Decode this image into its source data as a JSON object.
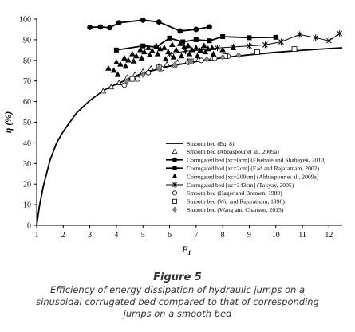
{
  "chart_data": {
    "type": "scatter",
    "xlabel": "F",
    "xlabel_subscript": "1",
    "ylabel": "η (%)",
    "xlim": [
      1,
      12.5
    ],
    "ylim": [
      0,
      100
    ],
    "xticks": [
      1,
      2,
      3,
      4,
      5,
      6,
      7,
      8,
      9,
      10,
      11,
      12
    ],
    "yticks": [
      0,
      10,
      20,
      30,
      40,
      50,
      60,
      70,
      80,
      90,
      100
    ],
    "grid": false,
    "legend_position": "bottom-right",
    "series": [
      {
        "name": "Smooth bed (Eq. 8)",
        "style": "line",
        "x": [
          1,
          1.1,
          1.25,
          1.5,
          1.75,
          2,
          2.5,
          3,
          3.5,
          4,
          5,
          6,
          7,
          8,
          9,
          10,
          11,
          12,
          12.5
        ],
        "y": [
          0,
          9,
          19,
          31.5,
          40,
          45.5,
          54.5,
          60.5,
          65.3,
          68.5,
          73.8,
          77.2,
          79.4,
          81.3,
          82.7,
          83.9,
          84.9,
          85.7,
          86.1
        ]
      },
      {
        "name": "Smooth bed (Abbaspour et al., 2009a)",
        "style": "open-triangle",
        "x": [
          3.5,
          3.8,
          4.1,
          4.4,
          4.7,
          5.0,
          5.3,
          5.6,
          5.9,
          6.3,
          6.7,
          7.1,
          7.6,
          8.1
        ],
        "y": [
          65,
          67,
          69,
          71.5,
          73,
          74.5,
          76,
          77,
          78,
          79,
          79.5,
          80.5,
          81,
          82
        ]
      },
      {
        "name": "Corrugated bed [xc=0cm] (Elsebaie and Shabayek, 2010)",
        "style": "line-filled-circle",
        "x": [
          3,
          3.4,
          3.75,
          4.1,
          5,
          5.6,
          6.4,
          7,
          7.5
        ],
        "y": [
          96,
          96.2,
          95.8,
          98.2,
          99.5,
          98.6,
          94.2,
          95,
          96.2
        ]
      },
      {
        "name": "Corrugated bed [xc=2cm] (Ead and Rajaratnam, 2002)",
        "style": "line-filled-square",
        "x": [
          4,
          5,
          5.5,
          6,
          6.5,
          7,
          7.5,
          8,
          9,
          10
        ],
        "y": [
          85,
          87,
          86.5,
          90.8,
          89,
          90,
          89.5,
          91.5,
          91,
          91.2
        ]
      },
      {
        "name": "Corrugated bed [xc=200cm] (Abbaspour et al., 2009a)",
        "style": "filled-triangle",
        "x": [
          3.7,
          3.9,
          4.0,
          4.15,
          4.3,
          4.45,
          4.6,
          4.75,
          4.9,
          5.05,
          5.2,
          5.35,
          5.5,
          5.65,
          5.8,
          5.95,
          6.1,
          6.25,
          6.4,
          6.55,
          6.7,
          6.85,
          7.0,
          7.15,
          7.3,
          7.45,
          7.6,
          4.05,
          4.35,
          4.65,
          4.95,
          5.25,
          5.55,
          5.85,
          6.15,
          6.45,
          6.75,
          7.05,
          7.35,
          7.65,
          8.0,
          8.4
        ],
        "y": [
          76,
          75,
          79,
          78,
          81,
          80,
          83,
          82,
          85,
          84,
          86,
          84.5,
          87,
          85.5,
          86,
          84,
          87.5,
          85,
          88,
          86.5,
          87,
          85,
          86,
          84.5,
          87,
          85.5,
          86,
          73,
          77,
          79.5,
          81,
          82.5,
          83,
          80.5,
          81.5,
          82,
          83,
          82,
          84,
          83,
          85,
          86
        ]
      },
      {
        "name": "Corrugated bed [xc=343cm] (Tokyay, 2005)",
        "style": "line-star",
        "x": [
          6.0,
          6.6,
          7.2,
          7.8,
          8.4,
          9.0,
          9.6,
          10.2,
          10.9,
          11.5,
          12.0,
          12.4
        ],
        "y": [
          83,
          84.5,
          85,
          86,
          86.5,
          87,
          87.5,
          89,
          92.5,
          91,
          89.5,
          93
        ]
      },
      {
        "name": "Smooth bed (Hager and Bremen, 1989)",
        "style": "open-circle",
        "x": [
          4.3,
          4.8,
          5.2,
          5.7,
          6.2,
          6.7,
          7.2,
          7.7,
          8.2
        ],
        "y": [
          68,
          71,
          74,
          76,
          77.5,
          79,
          80,
          81,
          82
        ]
      },
      {
        "name": "Smooth bed (Wu and Rajaratnam, 1996)",
        "style": "open-square",
        "x": [
          4.6,
          5.6,
          6.8,
          8.1,
          9.3,
          10.7
        ],
        "y": [
          71,
          76.5,
          79.5,
          82,
          84,
          85.5
        ]
      },
      {
        "name": "Smooth bed (Wang and Chanson, 2015)",
        "style": "gray-diamond",
        "x": [
          4.4,
          5.0,
          5.6,
          6.2,
          6.8,
          7.4,
          8.0,
          8.6
        ],
        "y": [
          70,
          73,
          76,
          78,
          79.5,
          80.5,
          81.5,
          82.5
        ]
      }
    ]
  },
  "caption": {
    "label": "Figure 5",
    "lines": [
      "Efficiency of energy dissipation of hydraulic jumps on a",
      "sinusoidal corrugated bed compared to that of corresponding",
      "jumps on a smooth bed"
    ]
  }
}
